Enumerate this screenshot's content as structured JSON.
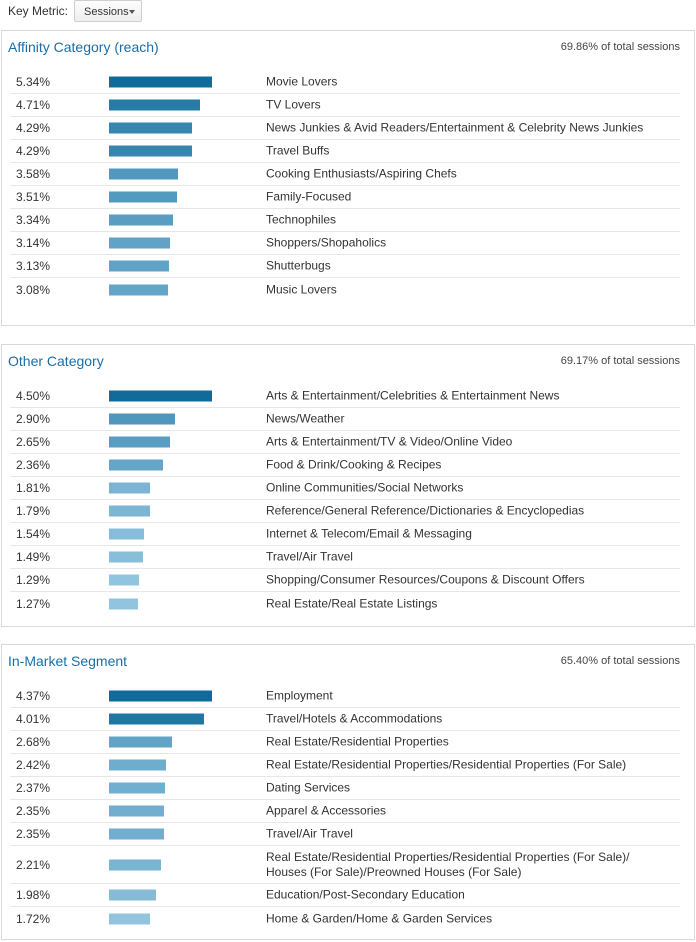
{
  "key_metric": {
    "label": "Key Metric:",
    "selected": "Sessions"
  },
  "panels": [
    {
      "title": "Affinity Category (reach)",
      "total": "69.86% of total sessions",
      "rows": [
        {
          "pct": "5.34%",
          "value": 5.34,
          "name": "Movie Lovers"
        },
        {
          "pct": "4.71%",
          "value": 4.71,
          "name": "TV Lovers"
        },
        {
          "pct": "4.29%",
          "value": 4.29,
          "name": "News Junkies & Avid Readers/Entertainment & Celebrity News Junkies"
        },
        {
          "pct": "4.29%",
          "value": 4.29,
          "name": "Travel Buffs"
        },
        {
          "pct": "3.58%",
          "value": 3.58,
          "name": "Cooking Enthusiasts/Aspiring Chefs"
        },
        {
          "pct": "3.51%",
          "value": 3.51,
          "name": "Family-Focused"
        },
        {
          "pct": "3.34%",
          "value": 3.34,
          "name": "Technophiles"
        },
        {
          "pct": "3.14%",
          "value": 3.14,
          "name": "Shoppers/Shopaholics"
        },
        {
          "pct": "3.13%",
          "value": 3.13,
          "name": "Shutterbugs"
        },
        {
          "pct": "3.08%",
          "value": 3.08,
          "name": "Music Lovers"
        }
      ]
    },
    {
      "title": "Other Category",
      "total": "69.17% of total sessions",
      "rows": [
        {
          "pct": "4.50%",
          "value": 4.5,
          "name": "Arts & Entertainment/Celebrities & Entertainment News"
        },
        {
          "pct": "2.90%",
          "value": 2.9,
          "name": "News/Weather"
        },
        {
          "pct": "2.65%",
          "value": 2.65,
          "name": "Arts & Entertainment/TV & Video/Online Video"
        },
        {
          "pct": "2.36%",
          "value": 2.36,
          "name": "Food & Drink/Cooking & Recipes"
        },
        {
          "pct": "1.81%",
          "value": 1.81,
          "name": "Online Communities/Social Networks"
        },
        {
          "pct": "1.79%",
          "value": 1.79,
          "name": "Reference/General Reference/Dictionaries & Encyclopedias"
        },
        {
          "pct": "1.54%",
          "value": 1.54,
          "name": "Internet & Telecom/Email & Messaging"
        },
        {
          "pct": "1.49%",
          "value": 1.49,
          "name": "Travel/Air Travel"
        },
        {
          "pct": "1.29%",
          "value": 1.29,
          "name": "Shopping/Consumer Resources/Coupons & Discount Offers"
        },
        {
          "pct": "1.27%",
          "value": 1.27,
          "name": "Real Estate/Real Estate Listings"
        }
      ]
    },
    {
      "title": "In-Market Segment",
      "total": "65.40% of total sessions",
      "rows": [
        {
          "pct": "4.37%",
          "value": 4.37,
          "name": "Employment"
        },
        {
          "pct": "4.01%",
          "value": 4.01,
          "name": "Travel/Hotels & Accommodations"
        },
        {
          "pct": "2.68%",
          "value": 2.68,
          "name": "Real Estate/Residential Properties"
        },
        {
          "pct": "2.42%",
          "value": 2.42,
          "name": "Real Estate/Residential Properties/Residential Properties (For Sale)"
        },
        {
          "pct": "2.37%",
          "value": 2.37,
          "name": "Dating Services"
        },
        {
          "pct": "2.35%",
          "value": 2.35,
          "name": "Apparel & Accessories"
        },
        {
          "pct": "2.35%",
          "value": 2.35,
          "name": "Travel/Air Travel"
        },
        {
          "pct": "2.21%",
          "value": 2.21,
          "name": "Real Estate/Residential Properties/Residential Properties (For Sale)/ Houses (For Sale)/Preowned Houses (For Sale)"
        },
        {
          "pct": "1.98%",
          "value": 1.98,
          "name": "Education/Post-Secondary Education"
        },
        {
          "pct": "1.72%",
          "value": 1.72,
          "name": "Home & Garden/Home & Garden Services"
        }
      ]
    }
  ],
  "colors": {
    "title": "#1a6ea8",
    "bar_dark": "#0e6b9a",
    "bar_light": "#a9d4ec"
  }
}
